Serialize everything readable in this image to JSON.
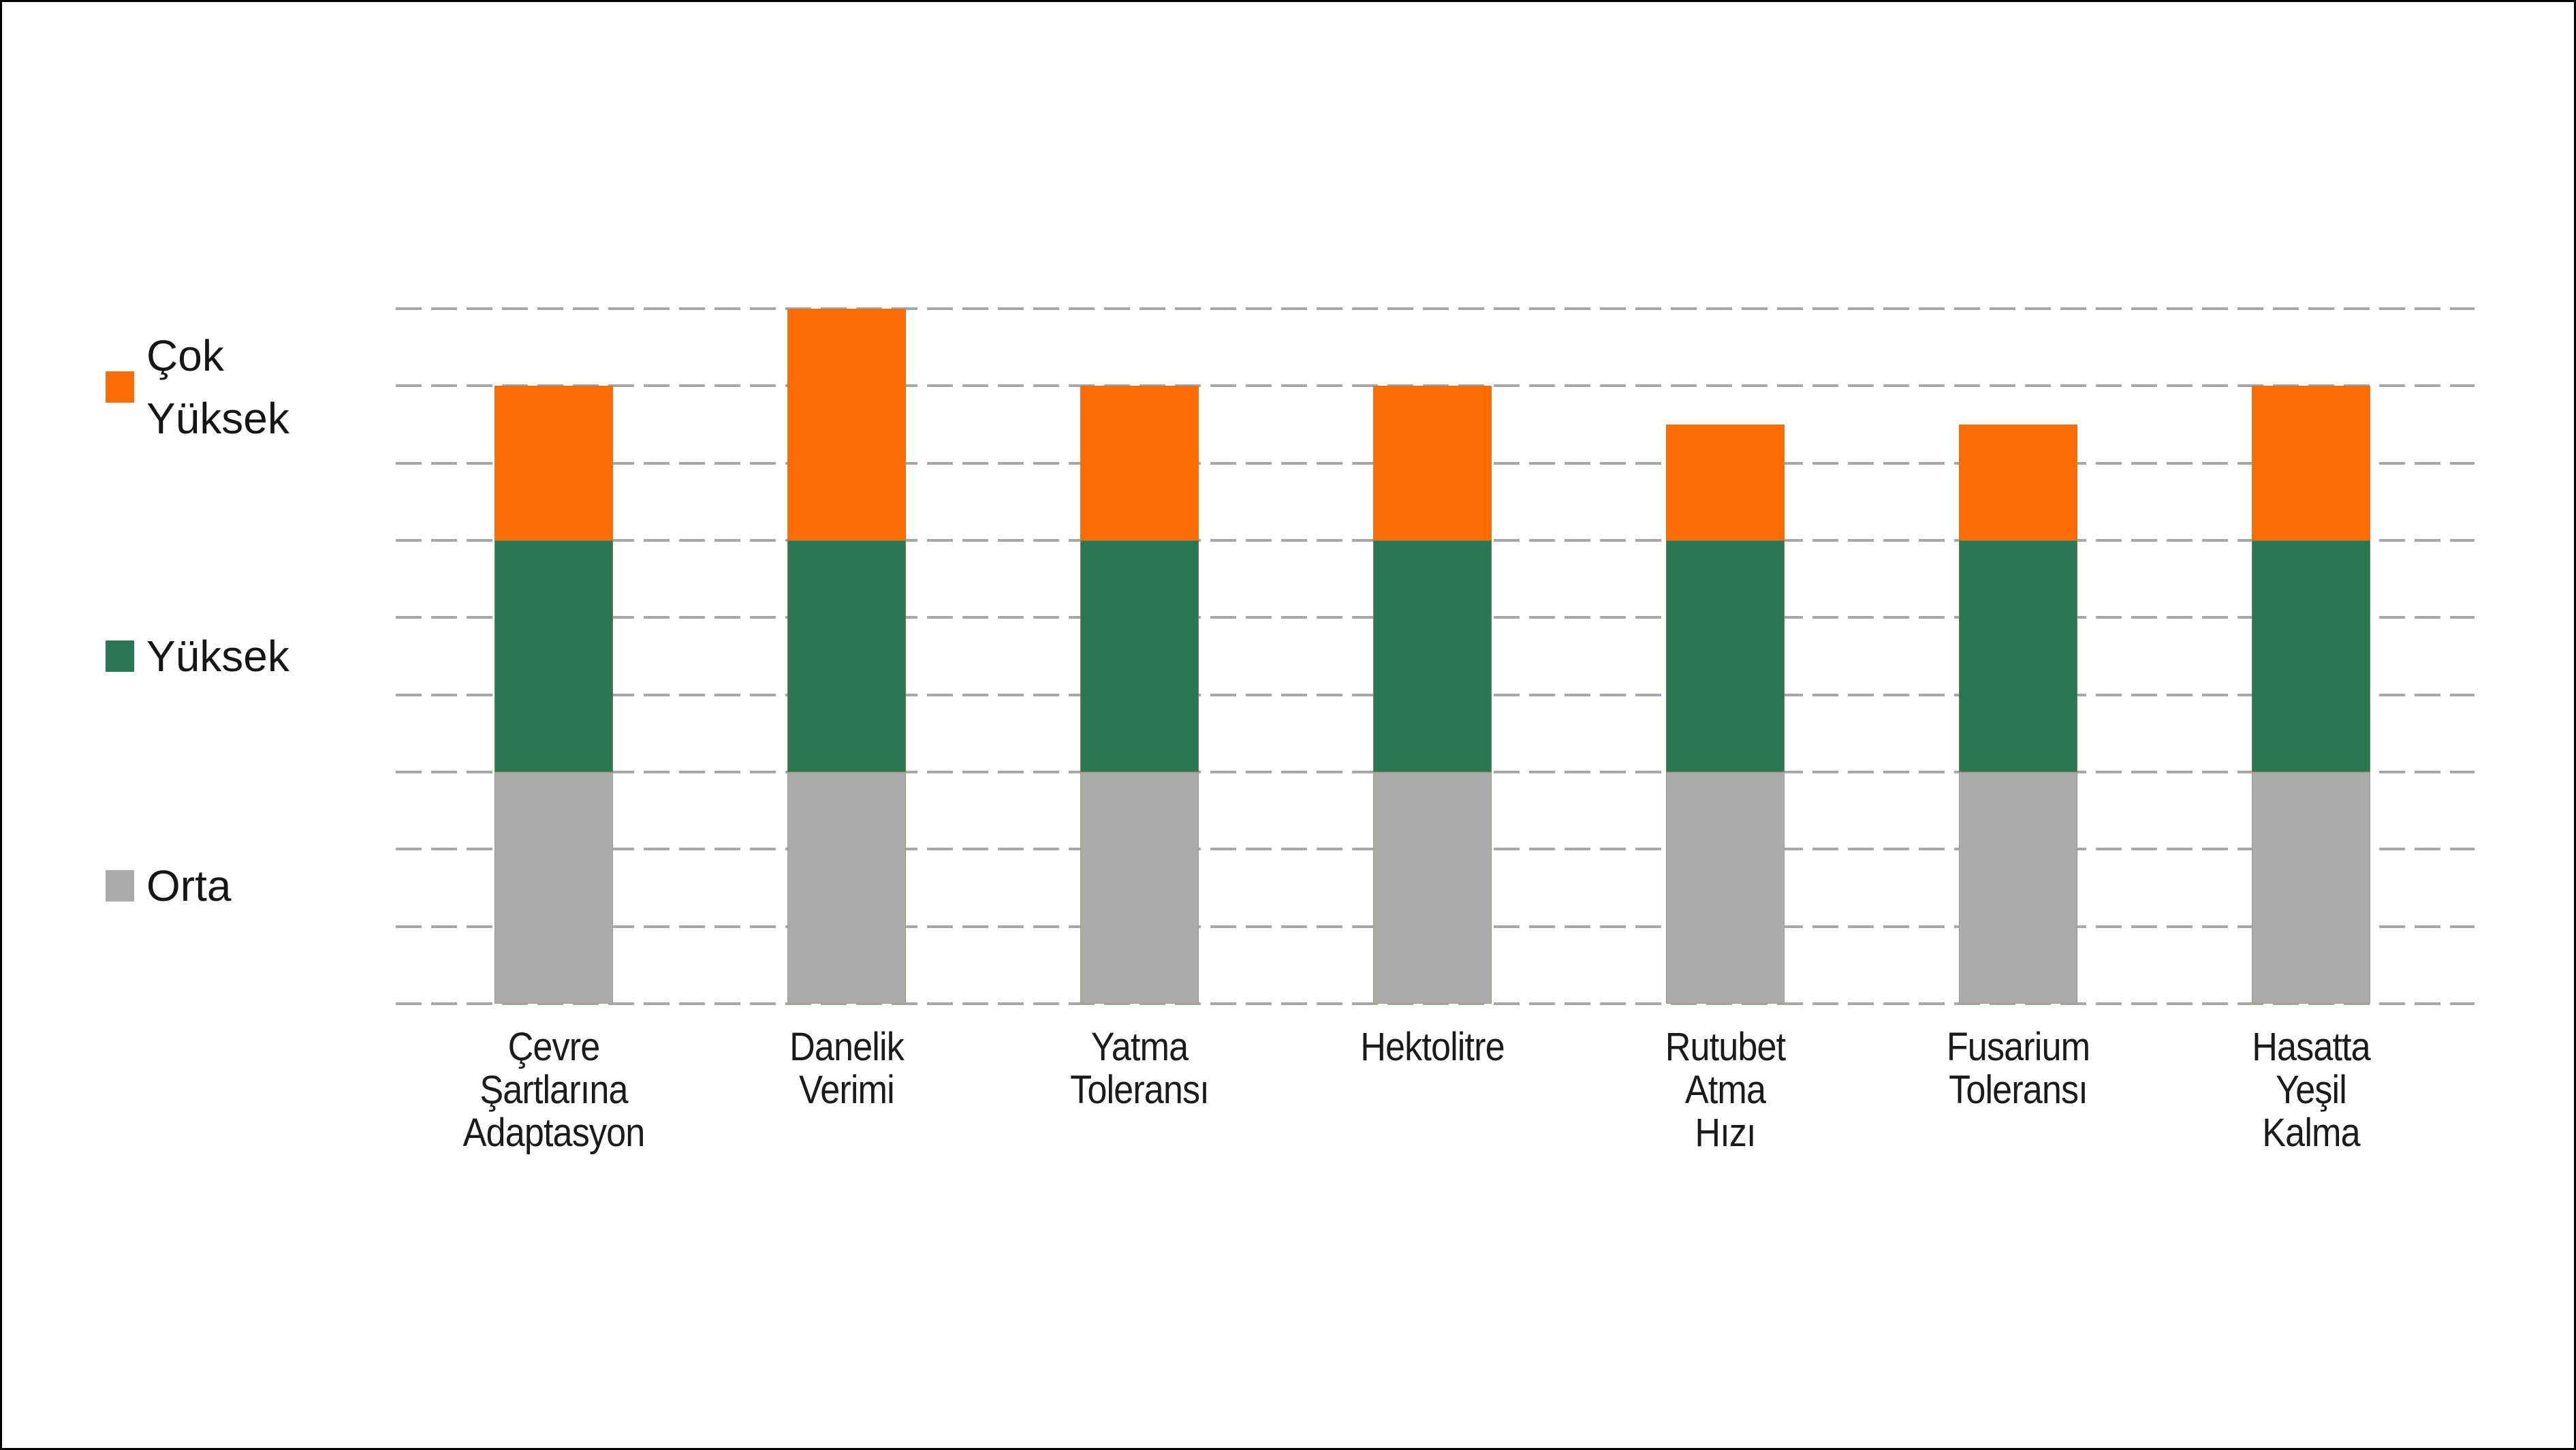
{
  "page": {
    "background": "#FFFFFF",
    "border_color": "#000000"
  },
  "legend": {
    "position": "left",
    "items": [
      {
        "label": "Çok\nYüksek",
        "color": "#FB6D04"
      },
      {
        "label": "Yüksek",
        "color": "#2A7655"
      },
      {
        "label": "Orta",
        "color": "#A9ABAA"
      }
    ]
  },
  "chart_data": {
    "type": "bar",
    "stacked": true,
    "title": "",
    "xlabel": "",
    "ylabel": "",
    "categories": [
      "Çevre\nŞartlarına\nAdaptasyon",
      "Danelik\nVerimi",
      "Yatma\nToleransı",
      "Hektolitre",
      "Rutubet\nAtma\nHızı",
      "Fusarium\nToleransı",
      "Hasatta\nYeşil\nKalma"
    ],
    "series": [
      {
        "name": "Çok Yüksek",
        "color": "#FB6D04",
        "values": [
          2,
          3,
          2,
          2,
          1.5,
          1.5,
          2
        ]
      },
      {
        "name": "Yüksek",
        "color": "#2A7655",
        "values": [
          3,
          3,
          3,
          3,
          3,
          3,
          3
        ]
      },
      {
        "name": "Orta",
        "color": "#A9ABAA",
        "values": [
          3,
          3,
          3,
          3,
          3,
          3,
          3
        ]
      }
    ],
    "stack_totals": [
      8,
      9,
      8,
      8,
      7.5,
      7.5,
      8
    ],
    "ylim": [
      0,
      9
    ],
    "gridline_count": 10,
    "grid_style": "dashed",
    "grid_color": "#A5A7A8",
    "legend_position": "left",
    "axis_tick_labels_shown": false,
    "bar_outline_color": "#A3864E"
  }
}
